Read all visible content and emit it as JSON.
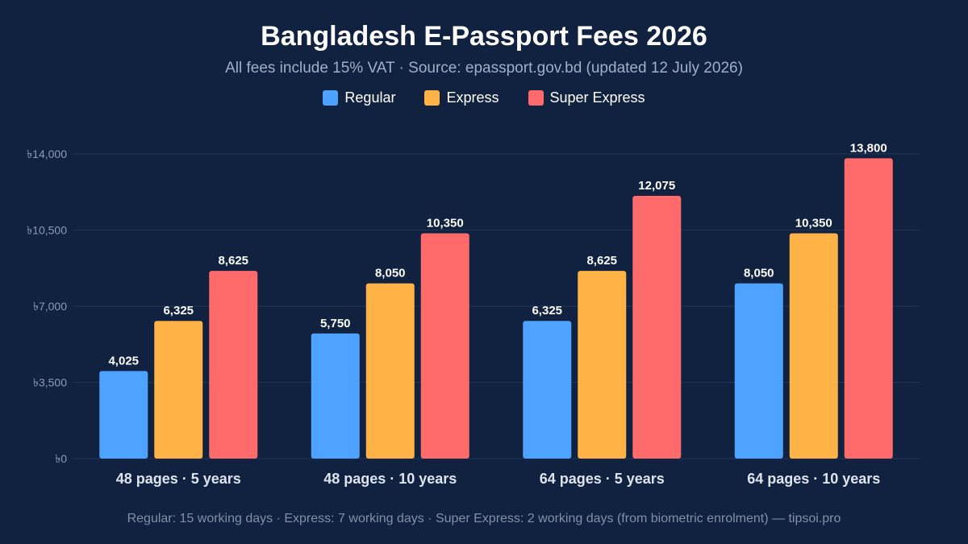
{
  "chart_data": {
    "type": "bar",
    "title": "Bangladesh E-Passport Fees 2026",
    "subtitle": "All fees include 15% VAT · Source: epassport.gov.bd (updated 12 July 2026)",
    "footer": "Regular: 15 working days · Express: 7 working days · Super Express: 2 working days (from biometric enrolment) — tipsoi.pro",
    "categories": [
      "48 pages · 5 years",
      "48 pages · 10 years",
      "64 pages · 5 years",
      "64 pages · 10 years"
    ],
    "series": [
      {
        "name": "Regular",
        "color": "#4da3ff",
        "values": [
          4025,
          5750,
          6325,
          8050
        ],
        "labels": [
          "4,025",
          "5,750",
          "6,325",
          "8,050"
        ]
      },
      {
        "name": "Express",
        "color": "#ffb347",
        "values": [
          6325,
          8050,
          8625,
          10350
        ],
        "labels": [
          "6,325",
          "8,050",
          "8,625",
          "10,350"
        ]
      },
      {
        "name": "Super Express",
        "color": "#ff6b6b",
        "values": [
          8625,
          10350,
          12075,
          13800
        ],
        "labels": [
          "8,625",
          "10,350",
          "12,075",
          "13,800"
        ]
      }
    ],
    "yticks": [
      0,
      3500,
      7000,
      10500,
      14000
    ],
    "ytick_labels": [
      "৳0",
      "৳3,500",
      "৳7,000",
      "৳10,500",
      "৳14,000"
    ],
    "ylim": [
      0,
      14000
    ],
    "xlabel": "",
    "ylabel": "",
    "grid": true,
    "legend_position": "top-center"
  }
}
